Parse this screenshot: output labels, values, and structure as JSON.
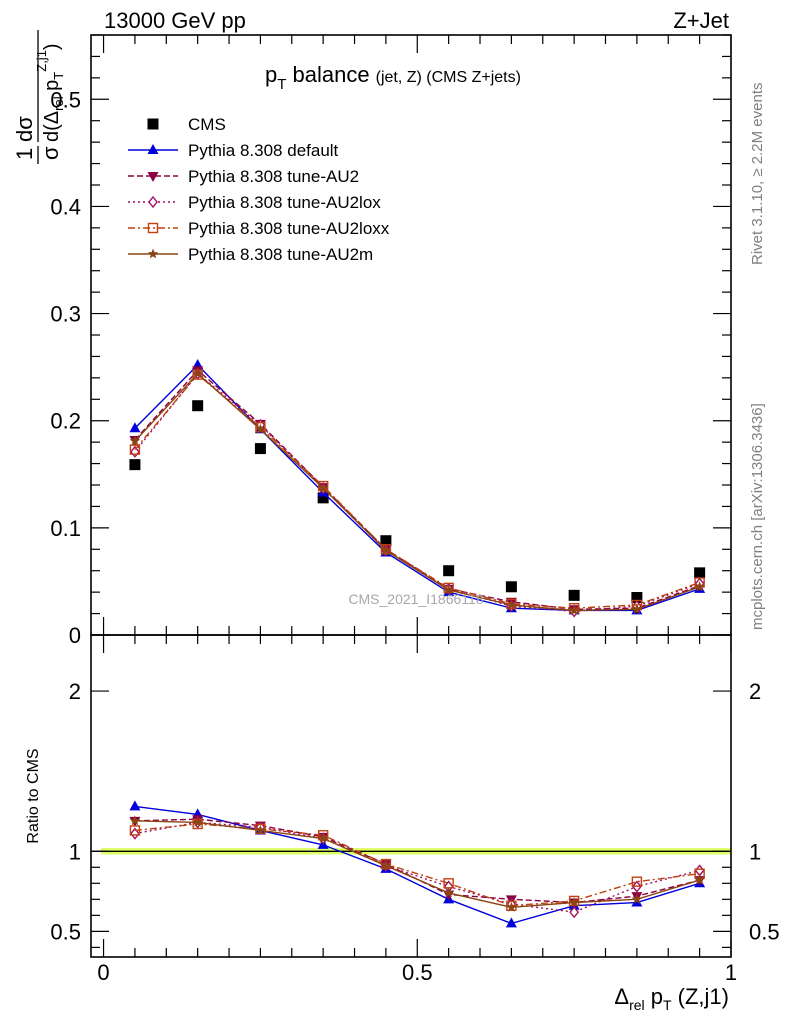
{
  "header": {
    "energy": "13000 GeV pp",
    "process": "Z+Jet"
  },
  "side": {
    "rivet": "Rivet 3.1.10, ≥ 2.2M events",
    "mcplots": "mcplots.cern.ch [arXiv:1306.3436]"
  },
  "watermark": "CMS_2021_I1866118",
  "chart_data": [
    {
      "type": "line",
      "title": "p_T balance (jet, Z) (CMS Z+jets)",
      "title_main": "p",
      "title_sub": "T",
      "title_text": " balance",
      "title_small": "(jet, Z) (CMS Z+jets)",
      "ylabel": "1/σ dσ/d(Δ_rel p_T^{Z,j1})",
      "ylim": [
        0,
        0.56
      ],
      "xlim": [
        -0.02,
        1.0
      ],
      "yticks": [
        0,
        0.1,
        0.2,
        0.3,
        0.4,
        0.5
      ],
      "ytick_labels": [
        "0",
        "0.1",
        "0.2",
        "0.3",
        "0.4",
        "0.5"
      ],
      "legend_position": "top-left",
      "x": [
        0.05,
        0.15,
        0.25,
        0.35,
        0.45,
        0.55,
        0.65,
        0.75,
        0.85,
        0.95
      ],
      "series": [
        {
          "name": "CMS",
          "color": "#000000",
          "marker": "square",
          "line": "none",
          "values": [
            0.159,
            0.214,
            0.174,
            0.128,
            0.088,
            0.06,
            0.045,
            0.037,
            0.035,
            0.058
          ]
        },
        {
          "name": "Pythia 8.308 default",
          "color": "#0000dd",
          "marker": "triangle-up",
          "line": "solid",
          "values": [
            0.193,
            0.252,
            0.192,
            0.133,
            0.077,
            0.04,
            0.025,
            0.023,
            0.023,
            0.043
          ]
        },
        {
          "name": "Pythia 8.308 tune-AU2",
          "color": "#8b0040",
          "marker": "triangle-down",
          "line": "dashed",
          "values": [
            0.182,
            0.247,
            0.197,
            0.138,
            0.08,
            0.043,
            0.031,
            0.024,
            0.025,
            0.046
          ]
        },
        {
          "name": "Pythia 8.308 tune-AU2lox",
          "color": "#a01060",
          "marker": "diamond-open",
          "line": "dotted",
          "values": [
            0.171,
            0.244,
            0.196,
            0.137,
            0.079,
            0.043,
            0.027,
            0.022,
            0.027,
            0.048
          ]
        },
        {
          "name": "Pythia 8.308 tune-AU2loxx",
          "color": "#c04010",
          "marker": "square-open",
          "line": "dashdot",
          "values": [
            0.173,
            0.243,
            0.194,
            0.139,
            0.08,
            0.044,
            0.029,
            0.025,
            0.028,
            0.049
          ]
        },
        {
          "name": "Pythia 8.308 tune-AU2m",
          "color": "#8b4513",
          "marker": "star",
          "line": "solid",
          "values": [
            0.181,
            0.244,
            0.192,
            0.137,
            0.079,
            0.042,
            0.028,
            0.023,
            0.024,
            0.045
          ]
        }
      ]
    },
    {
      "type": "line",
      "ylabel": "Ratio to CMS",
      "xlabel": "Δ_rel p_T (Z,j1)",
      "xlabel_delta": "Δ",
      "xlabel_rel": "rel",
      "xlabel_p": " p",
      "xlabel_T": "T",
      "xlabel_tail": " (Z,j1)",
      "ylim": [
        0.34,
        2.35
      ],
      "xlim": [
        -0.02,
        1.0
      ],
      "yticks": [
        0.5,
        1,
        2
      ],
      "ytick_labels": [
        "0.5",
        "1",
        "2"
      ],
      "xticks": [
        0,
        0.5,
        1
      ],
      "xtick_labels": [
        "0",
        "0.5",
        "1"
      ],
      "band_color": "#ddff66",
      "x": [
        0.05,
        0.15,
        0.25,
        0.35,
        0.45,
        0.55,
        0.65,
        0.75,
        0.85,
        0.95
      ],
      "series": [
        {
          "name": "Pythia 8.308 default",
          "color": "#0000dd",
          "marker": "triangle-up",
          "line": "solid",
          "values": [
            1.28,
            1.23,
            1.13,
            1.04,
            0.89,
            0.7,
            0.55,
            0.66,
            0.68,
            0.8
          ]
        },
        {
          "name": "Pythia 8.308 tune-AU2",
          "color": "#8b0040",
          "marker": "triangle-down",
          "line": "dashed",
          "values": [
            1.19,
            1.2,
            1.16,
            1.09,
            0.92,
            0.73,
            0.7,
            0.68,
            0.72,
            0.82
          ]
        },
        {
          "name": "Pythia 8.308 tune-AU2lox",
          "color": "#a01060",
          "marker": "diamond-open",
          "line": "dotted",
          "values": [
            1.11,
            1.18,
            1.15,
            1.08,
            0.91,
            0.78,
            0.67,
            0.62,
            0.78,
            0.88
          ]
        },
        {
          "name": "Pythia 8.308 tune-AU2loxx",
          "color": "#c04010",
          "marker": "square-open",
          "line": "dashdot",
          "values": [
            1.13,
            1.17,
            1.14,
            1.1,
            0.92,
            0.8,
            0.66,
            0.69,
            0.81,
            0.86
          ]
        },
        {
          "name": "Pythia 8.308 tune-AU2m",
          "color": "#8b4513",
          "marker": "star",
          "line": "solid",
          "values": [
            1.19,
            1.18,
            1.13,
            1.08,
            0.91,
            0.74,
            0.65,
            0.68,
            0.7,
            0.82
          ]
        }
      ]
    }
  ]
}
